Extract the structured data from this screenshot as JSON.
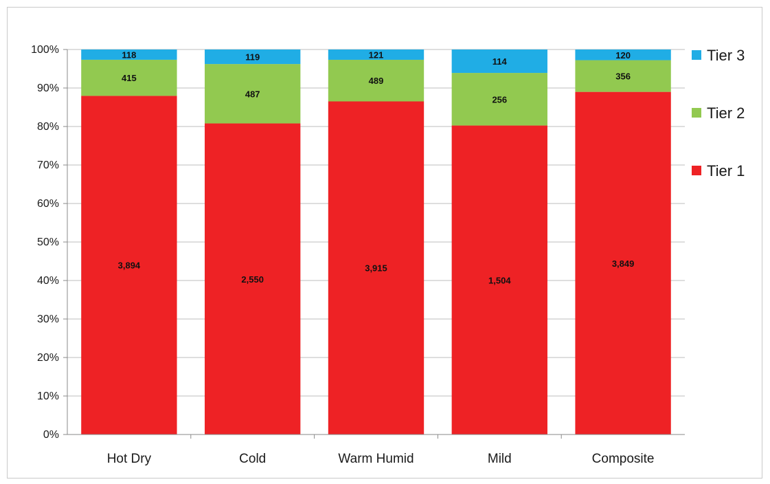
{
  "chart_data": {
    "type": "bar",
    "stacked": "percent",
    "categories": [
      "Hot Dry",
      "Cold",
      "Warm Humid",
      "Mild",
      "Composite"
    ],
    "series": [
      {
        "name": "Tier 1",
        "color": "#ee2225",
        "values": [
          3894,
          2550,
          3915,
          1504,
          3849
        ],
        "labels": [
          "3,894",
          "2,550",
          "3,915",
          "1,504",
          "3,849"
        ]
      },
      {
        "name": "Tier 2",
        "color": "#92c950",
        "values": [
          415,
          487,
          489,
          256,
          356
        ],
        "labels": [
          "415",
          "487",
          "489",
          "256",
          "356"
        ]
      },
      {
        "name": "Tier 3",
        "color": "#20ade5",
        "values": [
          118,
          119,
          121,
          114,
          120
        ],
        "labels": [
          "118",
          "119",
          "121",
          "114",
          "120"
        ]
      }
    ],
    "y_ticks": [
      "0%",
      "10%",
      "20%",
      "30%",
      "40%",
      "50%",
      "60%",
      "70%",
      "80%",
      "90%",
      "100%"
    ],
    "ylim": [
      0,
      100
    ],
    "grid": true,
    "legend_position": "right",
    "legend_order": [
      "Tier 3",
      "Tier 2",
      "Tier 1"
    ]
  }
}
